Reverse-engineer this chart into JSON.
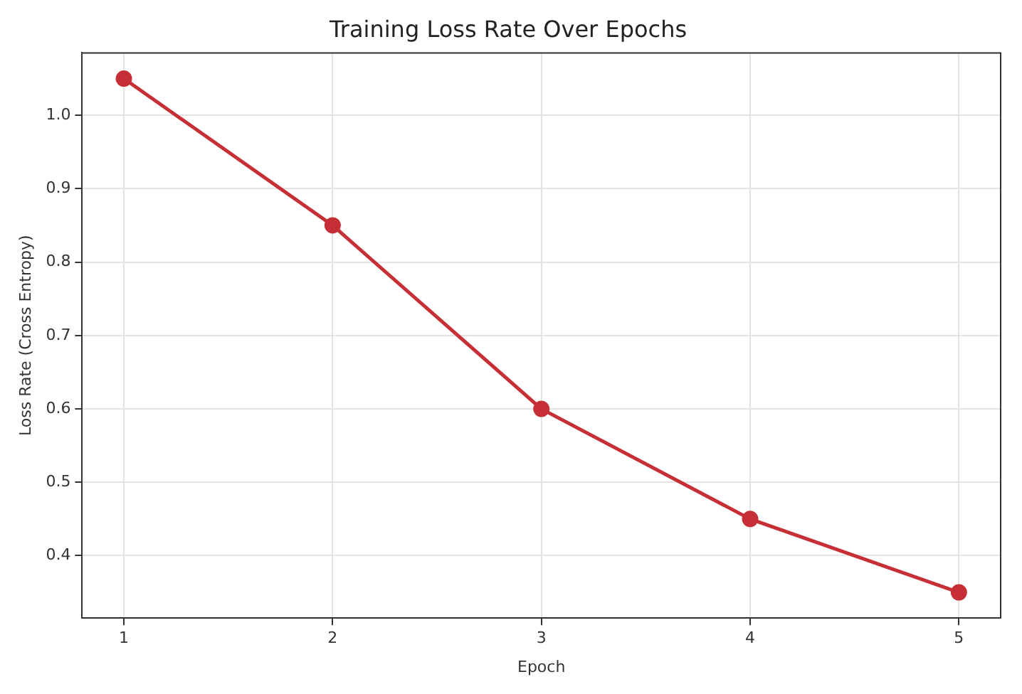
{
  "chart_data": {
    "type": "line",
    "title": "Training Loss Rate Over Epochs",
    "xlabel": "Epoch",
    "ylabel": "Loss Rate (Cross Entropy)",
    "x": [
      1,
      2,
      3,
      4,
      5
    ],
    "series": [
      {
        "color": "#c62f36",
        "values": [
          1.05,
          0.85,
          0.6,
          0.45,
          0.35
        ]
      }
    ],
    "xlim": [
      0.8,
      5.2
    ],
    "xticks": [
      1,
      2,
      3,
      4,
      5
    ],
    "ylim": [
      0.315,
      1.085
    ],
    "yticks": [
      0.4,
      0.5,
      0.6,
      0.7,
      0.8,
      0.9,
      {
        "value": 1.0,
        "label": "1.0"
      }
    ],
    "grid": true,
    "legend": false,
    "marker": "circle",
    "line_style": "solid"
  }
}
